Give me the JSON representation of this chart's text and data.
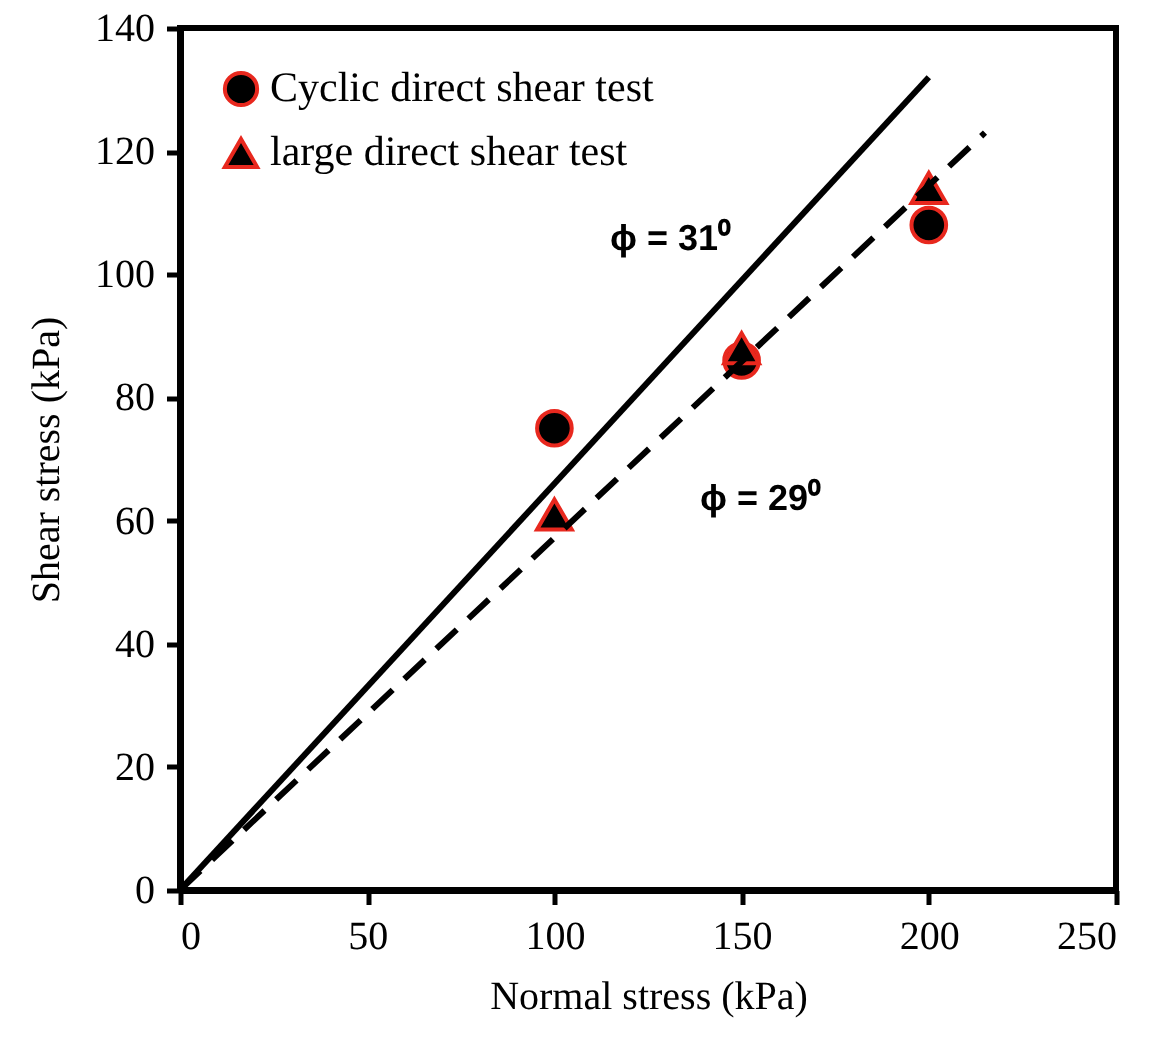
{
  "chart_data": {
    "type": "scatter",
    "xlabel": "Normal stress (kPa)",
    "ylabel": "Shear stress (kPa)",
    "xlim": [
      0,
      250
    ],
    "xticks": [
      0,
      50,
      100,
      150,
      200,
      250
    ],
    "ylim": [
      0,
      140
    ],
    "yticks": [
      0,
      20,
      40,
      60,
      80,
      100,
      120,
      140
    ],
    "grid": false,
    "legend": "top left",
    "series": [
      {
        "name": "Cyclic direct shear test",
        "marker": "circle",
        "color": "#000000",
        "x": [
          100,
          150,
          200
        ],
        "values": [
          75,
          86,
          108
        ]
      },
      {
        "name": "large direct shear test",
        "marker": "triangle",
        "color": "#000000",
        "x": [
          100,
          150,
          200
        ],
        "values": [
          61,
          88,
          114
        ]
      },
      {
        "type": "line",
        "line_style": "solid",
        "color": "#000000",
        "x": [
          0,
          200
        ],
        "values": [
          0,
          132
        ]
      },
      {
        "type": "line",
        "line_style": "dashed",
        "color": "#000000",
        "x": [
          0,
          215
        ],
        "values": [
          0,
          123
        ]
      }
    ],
    "annotations": [
      "ϕ = 31⁰",
      "ϕ = 29⁰"
    ]
  }
}
